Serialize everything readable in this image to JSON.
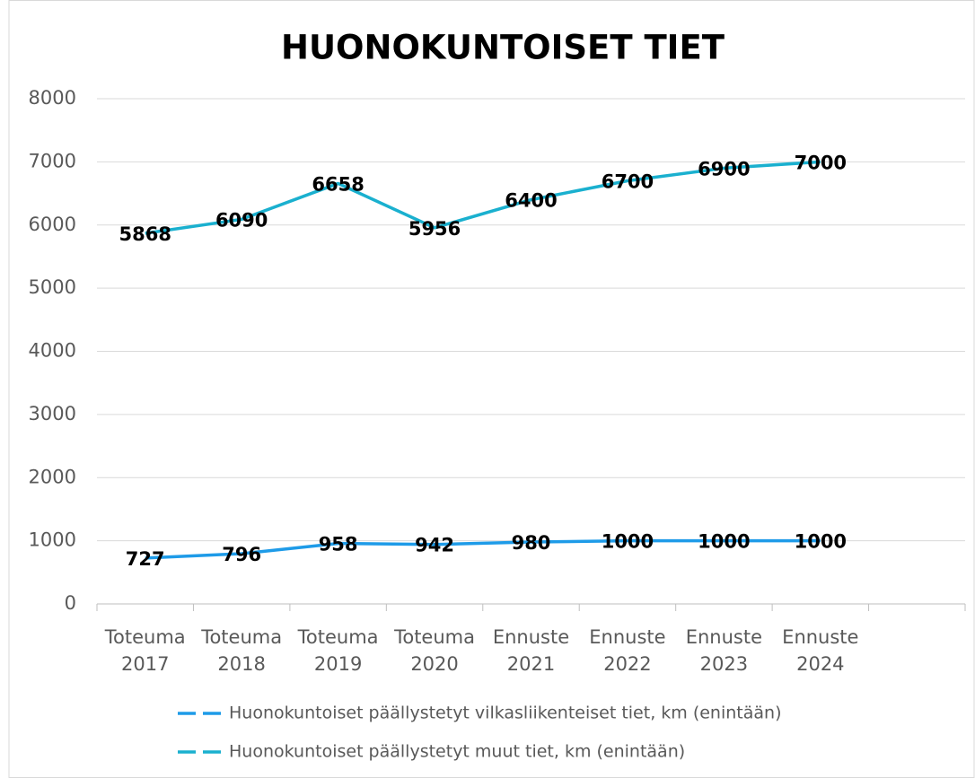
{
  "chart_data": {
    "type": "line",
    "title": "HUONOKUNTOISET TIET",
    "categories": [
      "Toteuma\n2017",
      "Toteuma\n2018",
      "Toteuma\n2019",
      "Toteuma\n2020",
      "Ennuste\n2021",
      "Ennuste\n2022",
      "Ennuste\n2023",
      "Ennuste\n2024",
      null
    ],
    "series": [
      {
        "name": "Huonokuntoiset päällystetyt vilkasliikenteiset tiet, km (enintään)",
        "color": "#1e9be8",
        "values": [
          727,
          796,
          958,
          942,
          980,
          1000,
          1000,
          1000,
          null
        ]
      },
      {
        "name": "Huonokuntoiset päällystetyt muut tiet, km (enintään)",
        "color": "#1ab0cf",
        "values": [
          5868,
          6090,
          6658,
          5956,
          6400,
          6700,
          6900,
          7000,
          null
        ]
      }
    ],
    "ylim": [
      0,
      8000
    ],
    "yticks": [
      0,
      1000,
      2000,
      3000,
      4000,
      5000,
      6000,
      7000,
      8000
    ],
    "grid": true
  }
}
